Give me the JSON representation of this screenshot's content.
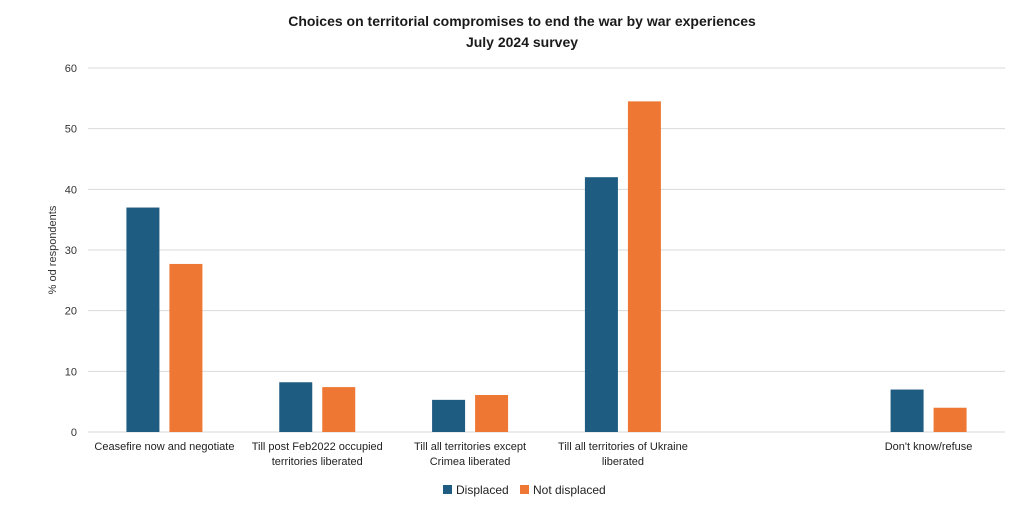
{
  "chart_data": {
    "type": "bar",
    "title": "Choices on territorial compromises to end the war by war experiences",
    "subtitle": "July 2024 survey",
    "xlabel": "",
    "ylabel": "% od respondents",
    "ylim": [
      0,
      60
    ],
    "yticks": [
      0,
      10,
      20,
      30,
      40,
      50,
      60
    ],
    "grid": true,
    "legend_position": "bottom-center",
    "categories": [
      [
        "Ceasefire now and negotiate"
      ],
      [
        "Till post Feb2022 occupied",
        "territories liberated"
      ],
      [
        "Till all territories except",
        "Crimea liberated"
      ],
      [
        "Till all  territories of Ukraine",
        "liberated"
      ],
      [
        ""
      ],
      [
        "Don't know/refuse"
      ]
    ],
    "series": [
      {
        "name": "Displaced",
        "color": "#1f5c82",
        "values": [
          37,
          8.2,
          5.3,
          42,
          null,
          7
        ]
      },
      {
        "name": "Not displaced",
        "color": "#ee7733",
        "values": [
          27.7,
          7.4,
          6.1,
          54.5,
          null,
          4
        ]
      }
    ]
  }
}
